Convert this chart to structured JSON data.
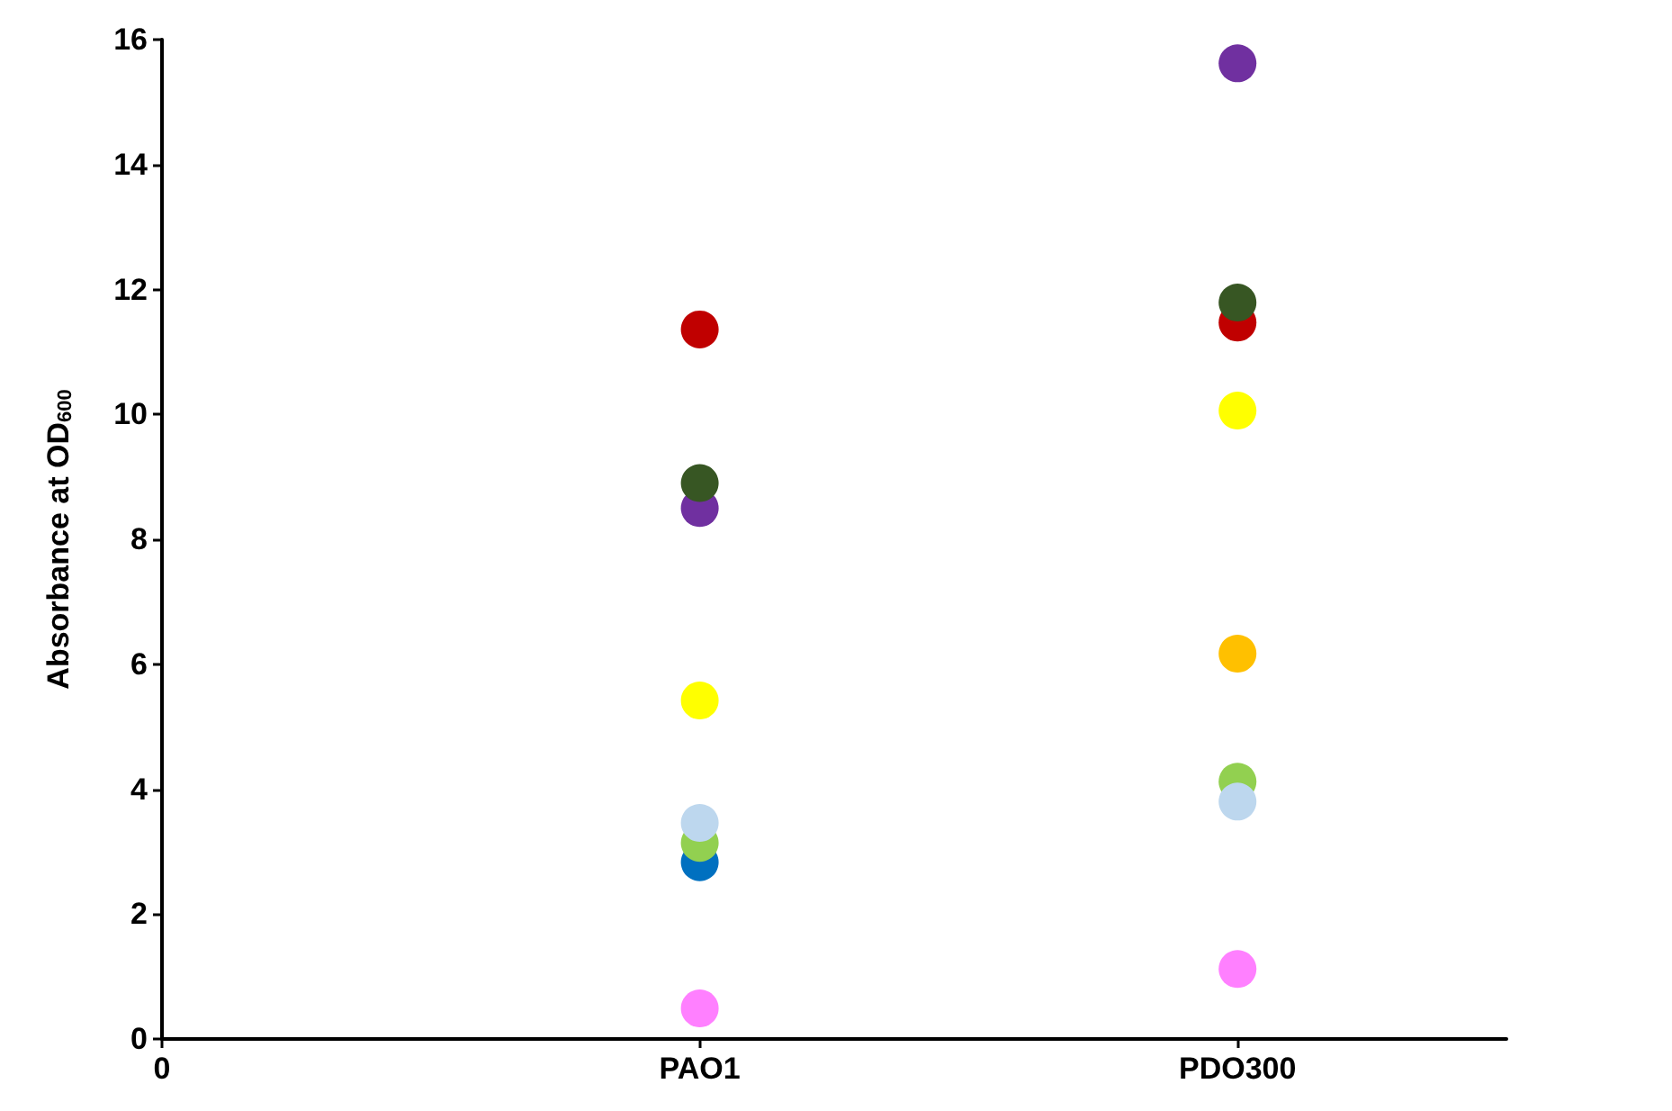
{
  "chart_data": {
    "type": "scatter",
    "ylabel": "Absorbance at OD$_{600}$",
    "categories": [
      "0",
      "PAO1",
      "PDO300"
    ],
    "ylim": [
      0,
      16
    ],
    "yticks": [
      0,
      2,
      4,
      6,
      8,
      10,
      12,
      14,
      16
    ],
    "grid": false,
    "marker": "circle",
    "series": [
      {
        "color": "#0070c0",
        "values": [
          null,
          2.83,
          null
        ]
      },
      {
        "color": "#92d050",
        "values": [
          null,
          3.14,
          4.12
        ]
      },
      {
        "color": "#bdd7ee",
        "values": [
          null,
          3.46,
          3.8
        ]
      },
      {
        "color": "#ff80ff",
        "values": [
          null,
          0.49,
          1.12
        ]
      },
      {
        "color": "#ffff00",
        "values": [
          null,
          5.42,
          10.06
        ]
      },
      {
        "color": "#ffc000",
        "values": [
          null,
          null,
          6.17
        ]
      },
      {
        "color": "#7030a0",
        "values": [
          null,
          8.5,
          15.62
        ]
      },
      {
        "color": "#c00000",
        "values": [
          null,
          11.36,
          11.47
        ]
      },
      {
        "color": "#375623",
        "values": [
          null,
          8.9,
          11.79
        ]
      }
    ]
  }
}
